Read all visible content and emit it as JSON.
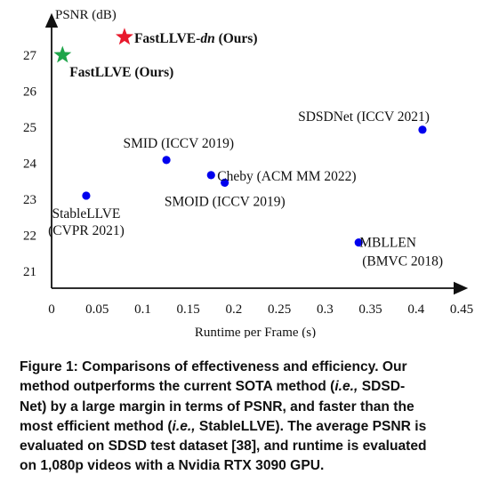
{
  "chart_data": {
    "type": "scatter",
    "xlabel": "Runtime per Frame (s)",
    "ylabel": "PSNR (dB)",
    "xlim": [
      0,
      0.45
    ],
    "ylim": [
      20.5,
      27.8
    ],
    "x_ticks": [
      "0",
      "0.05",
      "0.1",
      "0.15",
      "0.2",
      "0.25",
      "0.3",
      "0.35",
      "0.4",
      "0.45"
    ],
    "y_ticks": [
      "21",
      "22",
      "23",
      "24",
      "25",
      "26",
      "27"
    ],
    "grid": false,
    "points": [
      {
        "label": [
          "FastLLVE-",
          "dn",
          " (Ours)"
        ],
        "x": 0.08,
        "y": 27.5,
        "marker": "star",
        "color": "#e8192c",
        "bold": true
      },
      {
        "label": [
          "FastLLVE (Ours)"
        ],
        "x": 0.012,
        "y": 27.0,
        "marker": "star",
        "color": "#1fa54a",
        "bold": true
      },
      {
        "label": [
          "SDSDNet (ICCV 2021)"
        ],
        "x": 0.407,
        "y": 24.93,
        "marker": "circle",
        "color": "#0000ee",
        "bold": false
      },
      {
        "label": [
          "SMID (ICCV 2019)"
        ],
        "x": 0.126,
        "y": 24.09,
        "marker": "circle",
        "color": "#0000ee",
        "bold": false
      },
      {
        "label": [
          "Cheby (ACM MM 2022)"
        ],
        "x": 0.175,
        "y": 23.67,
        "marker": "circle",
        "color": "#0000ee",
        "bold": false
      },
      {
        "label": [
          "SMOID (ICCV 2019)"
        ],
        "x": 0.19,
        "y": 23.46,
        "marker": "circle",
        "color": "#0000ee",
        "bold": false
      },
      {
        "label": [
          "StableLLVE",
          "(CVPR 2021)"
        ],
        "x": 0.038,
        "y": 23.1,
        "marker": "circle",
        "color": "#0000ee",
        "bold": false
      },
      {
        "label": [
          "MBLLEN",
          "(BMVC 2018)"
        ],
        "x": 0.337,
        "y": 21.8,
        "marker": "circle",
        "color": "#0000ee",
        "bold": false
      }
    ]
  },
  "caption": {
    "lines": [
      [
        {
          "t": "Figure 1: Comparisons of effectiveness and efficiency. Our"
        }
      ],
      [
        {
          "t": "method outperforms the current SOTA method ("
        },
        {
          "t": "i.e.,",
          "i": true
        },
        {
          "t": " SDSD-"
        }
      ],
      [
        {
          "t": "Net) by a large margin in terms of PSNR, and faster than the"
        }
      ],
      [
        {
          "t": "most efficient method ("
        },
        {
          "t": "i.e.,",
          "i": true
        },
        {
          "t": " StableLLVE). The average PSNR is"
        }
      ],
      [
        {
          "t": "evaluated on SDSD test dataset [38], and runtime is evaluated"
        }
      ],
      [
        {
          "t": "on 1,080p videos with a Nvidia RTX 3090 GPU."
        }
      ]
    ]
  }
}
